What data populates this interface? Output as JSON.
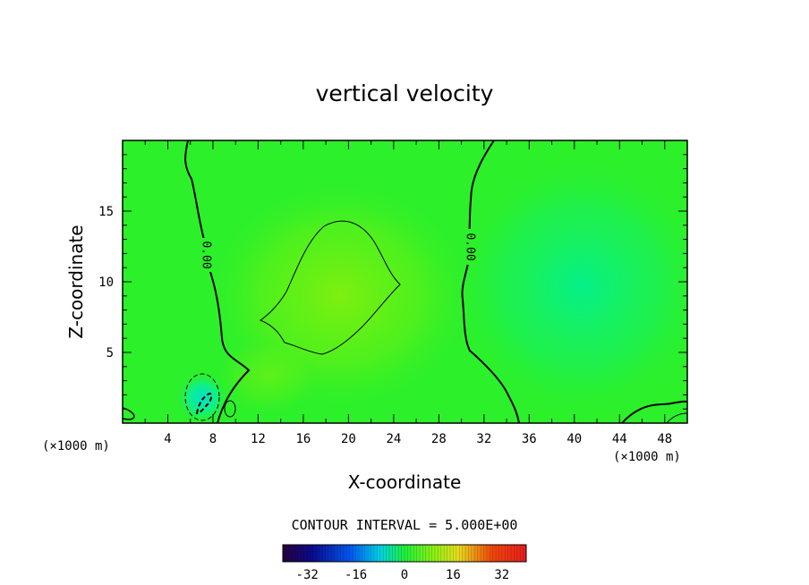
{
  "chart_data": {
    "type": "contour",
    "title": "vertical velocity",
    "xlabel": "X-coordinate",
    "ylabel": "Z-coordinate",
    "x_unit": "(×1000 m)",
    "x_unit_right": "(×1000 m)",
    "xlim": [
      0,
      50
    ],
    "ylim": [
      0,
      20
    ],
    "xticks": [
      "4",
      "8",
      "12",
      "16",
      "20",
      "24",
      "28",
      "32",
      "36",
      "40",
      "44",
      "48"
    ],
    "yticks": [
      "5",
      "10",
      "15"
    ],
    "contour_interval_text": "CONTOUR INTERVAL = 5.000E+00",
    "contour_labels": [
      "0.00",
      "0.00"
    ],
    "colorbar": {
      "range": [
        -40,
        40
      ],
      "ticks": [
        "-32",
        "-16",
        "0",
        "16",
        "32"
      ]
    },
    "features": [
      {
        "kind": "positive maximum",
        "x": 19,
        "z": 9,
        "approx_value": 5
      },
      {
        "kind": "negative minimum",
        "x": 7,
        "z": 1.5,
        "approx_value": -10
      },
      {
        "kind": "weak negative region",
        "x": 41,
        "z": 10,
        "approx_value": -4
      }
    ],
    "grid": false,
    "colors": {
      "background_field": "#2cf02a",
      "frame": "#000000"
    }
  }
}
